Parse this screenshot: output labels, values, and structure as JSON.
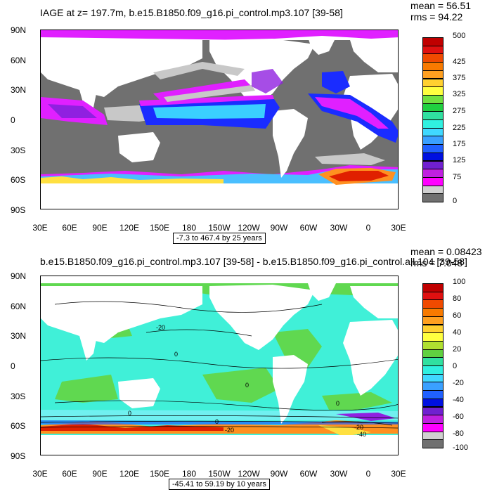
{
  "top": {
    "title": "IAGE at z= 197.7m, b.e15.B1850.f09_g16.pi_control.mp3.107 [39-58]",
    "mean": "mean = 56.51",
    "rms": "rms = 94.22",
    "range": "-7.3 to 467.4 by 25 years",
    "lat_labels": [
      "90N",
      "60N",
      "30N",
      "0",
      "30S",
      "60S",
      "90S"
    ],
    "lon_labels": [
      "30E",
      "60E",
      "90E",
      "120E",
      "150E",
      "180",
      "150W",
      "120W",
      "90W",
      "60W",
      "30W",
      "0",
      "30E"
    ],
    "colorbar": {
      "labels": [
        "500",
        "425",
        "375",
        "325",
        "275",
        "225",
        "175",
        "125",
        "75",
        "0"
      ],
      "colors": [
        "#c00000",
        "#e01010",
        "#f04a00",
        "#f87a00",
        "#ffa020",
        "#ffd030",
        "#ffff40",
        "#70e040",
        "#20d040",
        "#30e0a0",
        "#30f0e0",
        "#40d8ff",
        "#3aa0ff",
        "#2060ff",
        "#0010e0",
        "#7020d0",
        "#c020e0",
        "#ff00ff",
        "#d0d0d0",
        "#707070"
      ]
    },
    "colors": {
      "land": "#ffffff",
      "ocean_grey": "#707070",
      "light_grey": "#c8c8c8",
      "blue": "#1a2cff",
      "cyan": "#3ad0ff",
      "magenta": "#e020ff",
      "violet": "#9020e0",
      "red": "#e02000",
      "orange": "#ff9020",
      "yellow": "#ffe040",
      "green": "#40d040"
    }
  },
  "bottom": {
    "title": "b.e15.B1850.f09_g16.pi_control.mp3.107 [39-58] - b.e15.B1850.f09_g16.pi_control.all.104 [39-58]",
    "mean": "mean = 0.08423",
    "rms": "rms = 7.048",
    "range": "-45.41 to 59.19 by 10 years",
    "lat_labels": [
      "90N",
      "60N",
      "30N",
      "0",
      "30S",
      "60S",
      "90S"
    ],
    "lon_labels": [
      "30E",
      "60E",
      "90E",
      "120E",
      "150E",
      "180",
      "150W",
      "120W",
      "90W",
      "60W",
      "30W",
      "0",
      "30E"
    ],
    "contour_labels": [
      "-20",
      "0",
      "0",
      "0",
      "0",
      "0",
      "-20",
      "-20",
      "-40"
    ],
    "colorbar": {
      "labels": [
        "100",
        "80",
        "60",
        "40",
        "20",
        "0",
        "-20",
        "-40",
        "-60",
        "-80",
        "-100"
      ],
      "colors": [
        "#c00000",
        "#e01010",
        "#f04a00",
        "#f87a00",
        "#ffa020",
        "#ffd030",
        "#ffff40",
        "#b0e030",
        "#60d040",
        "#30e0a0",
        "#30f0e0",
        "#40d8ff",
        "#3aa0ff",
        "#2060ff",
        "#0010e0",
        "#7020d0",
        "#c020e0",
        "#ff00ff",
        "#d0d0d0",
        "#707070"
      ]
    },
    "colors": {
      "land": "#ffffff",
      "green": "#60d850",
      "cyan": "#40f0d8",
      "light_cyan": "#70f0f0",
      "blue": "#2060ff",
      "orange": "#ff9020",
      "red": "#e02000",
      "yellow": "#ffe040",
      "violet": "#9020e0"
    }
  }
}
